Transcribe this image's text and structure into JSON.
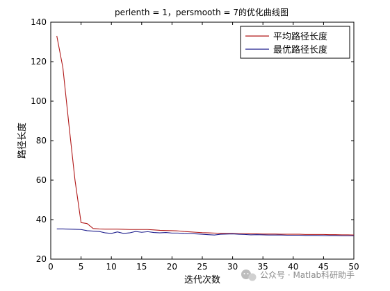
{
  "chart_data": {
    "type": "line",
    "title": "perlenth = 1，persmooth = 7的优化曲线图",
    "xlabel": "迭代次数",
    "ylabel": "路径长度",
    "xlim": [
      0,
      50
    ],
    "ylim": [
      20,
      140
    ],
    "xticks": [
      0,
      5,
      10,
      15,
      20,
      25,
      30,
      35,
      40,
      45,
      50
    ],
    "yticks": [
      20,
      40,
      60,
      80,
      100,
      120,
      140
    ],
    "grid": false,
    "legend_position": "top-right",
    "x": [
      1,
      2,
      3,
      4,
      5,
      6,
      7,
      8,
      9,
      10,
      11,
      12,
      13,
      14,
      15,
      16,
      17,
      18,
      19,
      20,
      21,
      22,
      23,
      24,
      25,
      26,
      27,
      28,
      29,
      30,
      31,
      32,
      33,
      34,
      35,
      36,
      37,
      38,
      39,
      40,
      41,
      42,
      43,
      44,
      45,
      46,
      47,
      48,
      49,
      50
    ],
    "series": [
      {
        "name": "平均路径长度",
        "color": "#b01818",
        "values": [
          133,
          117,
          88,
          60,
          38.5,
          38,
          35.5,
          35.3,
          35.2,
          35.2,
          35.2,
          35.1,
          35.0,
          35.0,
          35.0,
          35.0,
          34.8,
          34.6,
          34.5,
          34.4,
          34.3,
          34.0,
          33.8,
          33.6,
          33.4,
          33.3,
          33.2,
          33.1,
          33.0,
          33.0,
          32.9,
          32.9,
          32.8,
          32.8,
          32.7,
          32.7,
          32.7,
          32.6,
          32.6,
          32.6,
          32.6,
          32.5,
          32.5,
          32.5,
          32.5,
          32.4,
          32.4,
          32.3,
          32.3,
          32.2
        ]
      },
      {
        "name": "最优路径长度",
        "color": "#1c1c8c",
        "values": [
          35.3,
          35.3,
          35.2,
          35.1,
          35.0,
          34.4,
          34.2,
          34.0,
          33.3,
          33.0,
          33.8,
          33.0,
          33.3,
          34.0,
          33.6,
          33.9,
          33.5,
          33.3,
          33.5,
          33.2,
          33.2,
          33.0,
          32.9,
          32.8,
          32.6,
          32.4,
          32.2,
          32.6,
          32.7,
          32.8,
          32.6,
          32.5,
          32.3,
          32.4,
          32.3,
          32.2,
          32.2,
          32.2,
          32.1,
          32.1,
          32.1,
          32.0,
          32.0,
          32.0,
          31.9,
          31.9,
          31.9,
          31.8,
          31.8,
          31.8
        ]
      }
    ]
  },
  "watermark": {
    "icon": "wechat-icon",
    "text": "公众号 · Matlab科研助手"
  }
}
